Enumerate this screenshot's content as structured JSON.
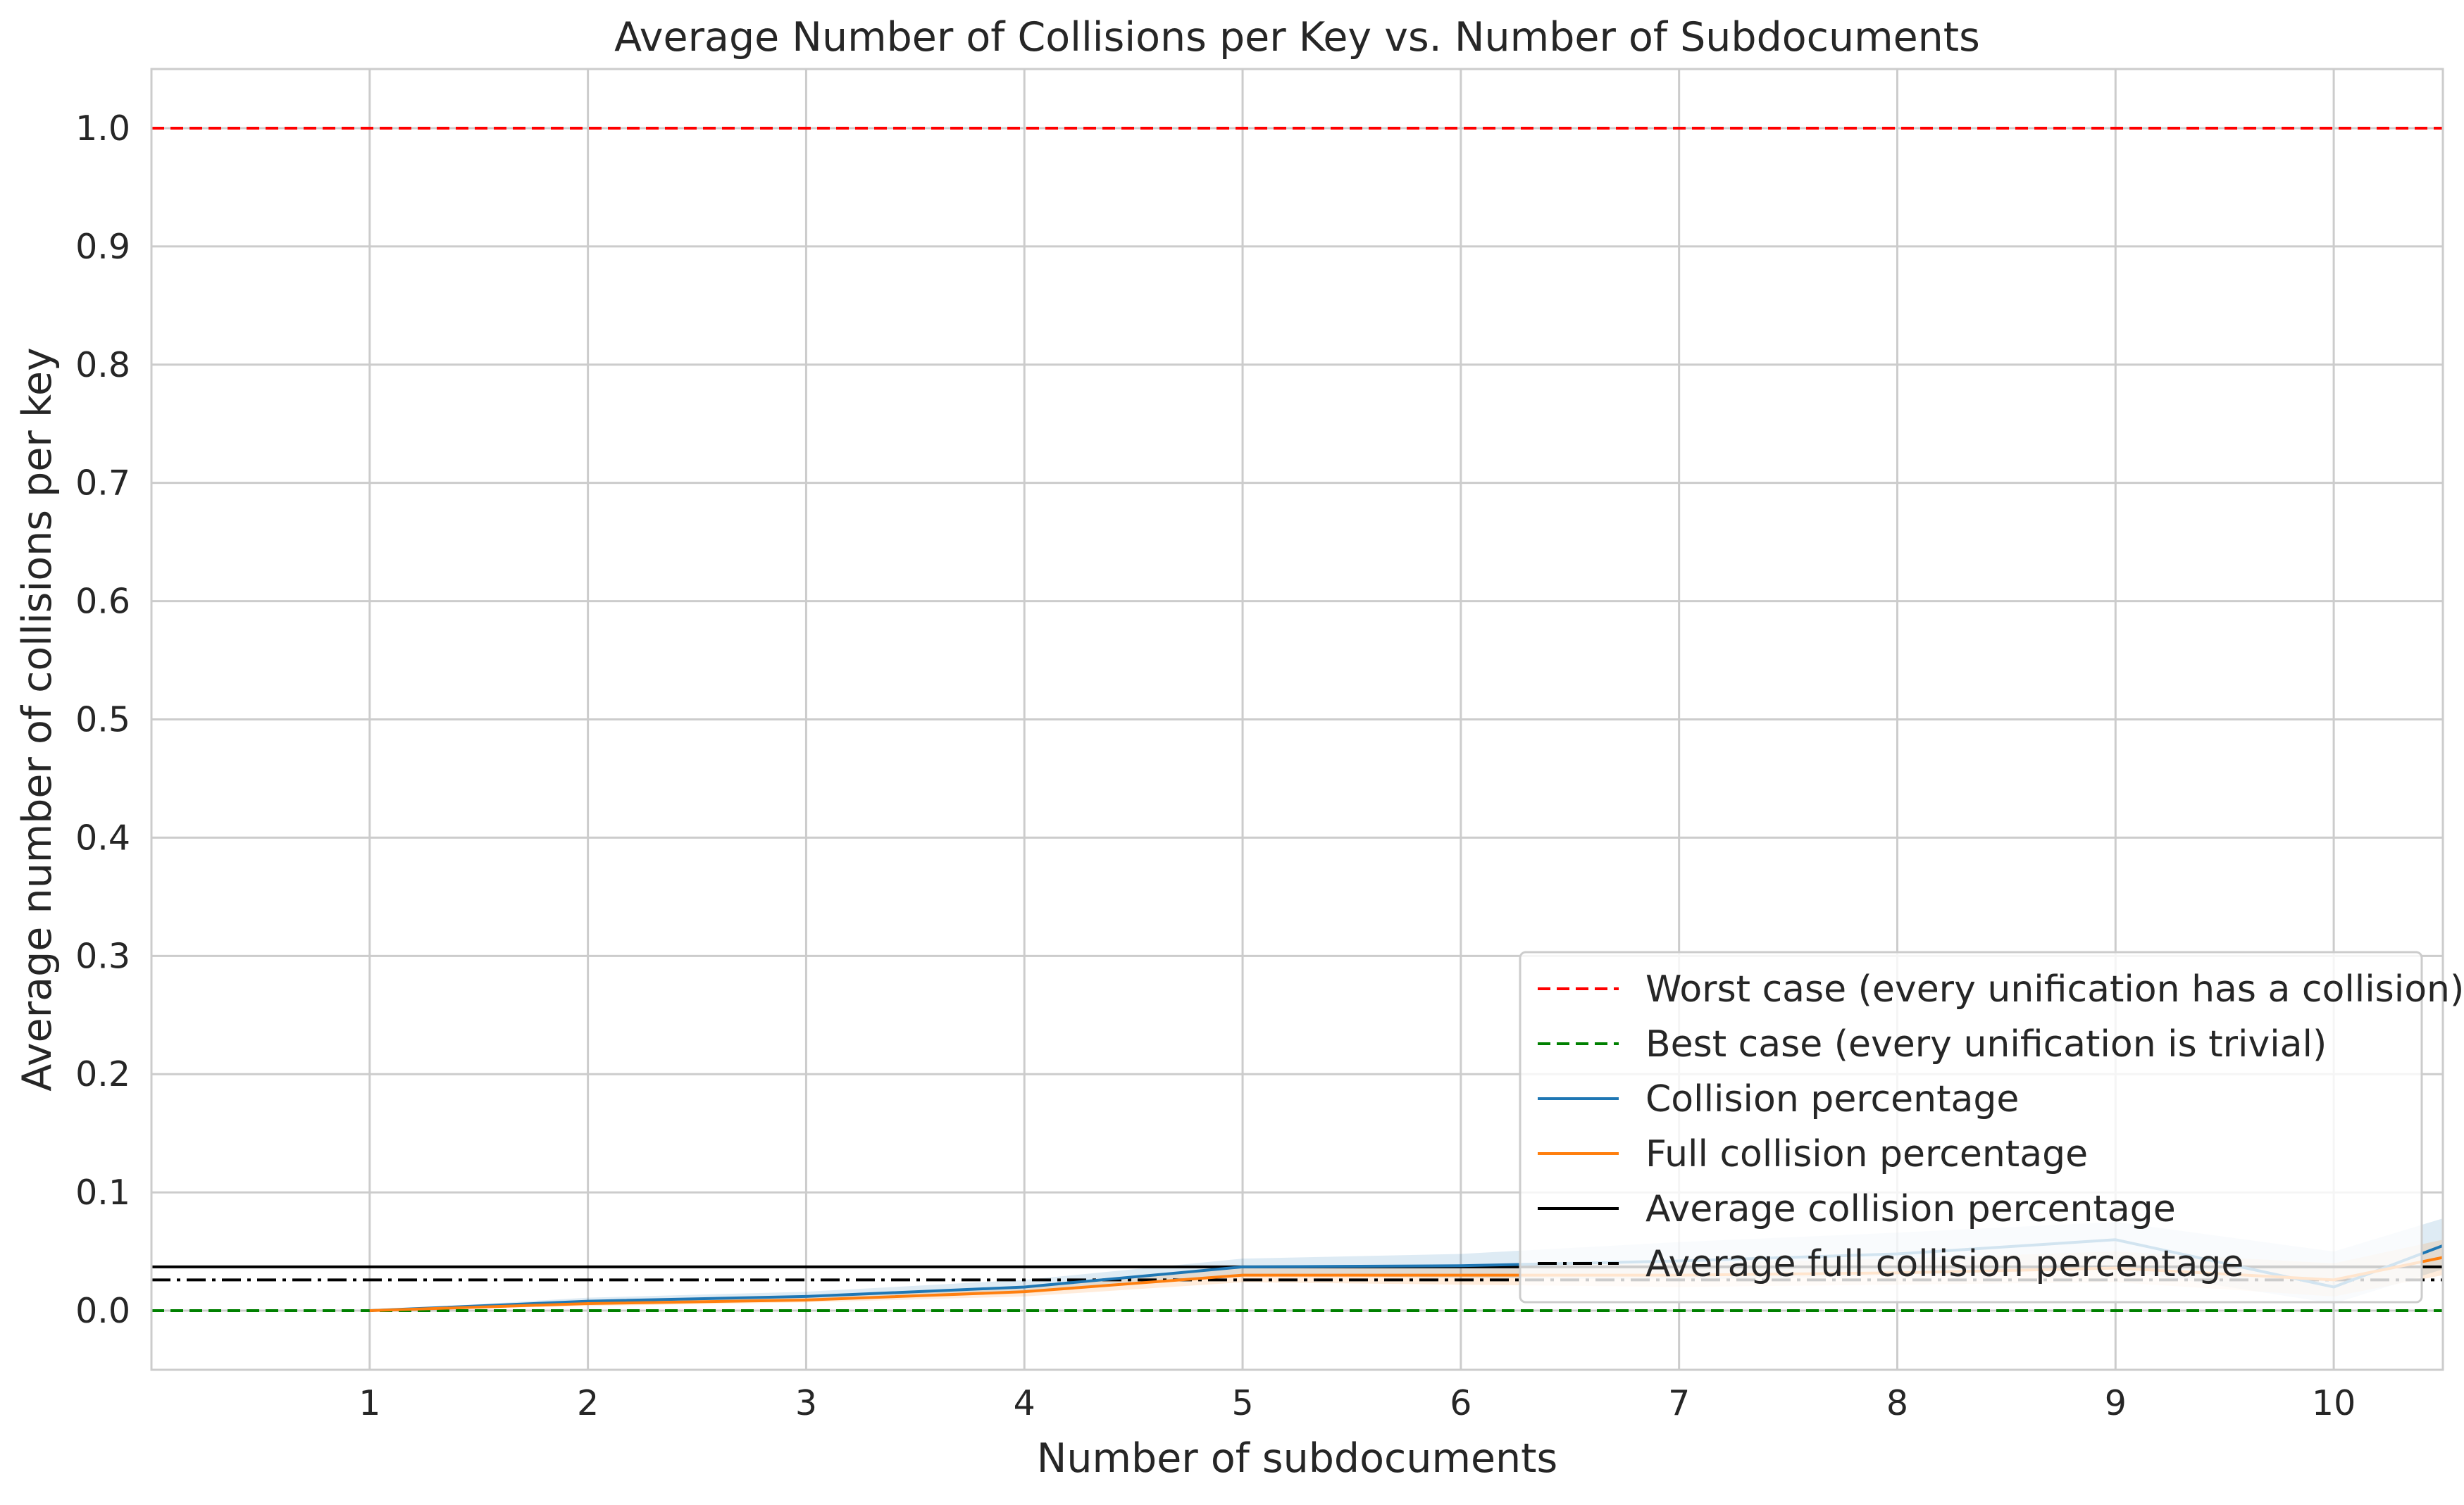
{
  "chart_data": {
    "type": "line",
    "title": "Average Number of Collisions per Key vs. Number of Subdocuments",
    "xlabel": "Number of subdocuments",
    "ylabel": "Average number of collisions per key",
    "xlim": [
      0,
      10.5
    ],
    "ylim": [
      -0.05,
      1.05
    ],
    "xticks": [
      "1",
      "2",
      "3",
      "4",
      "5",
      "6",
      "7",
      "8",
      "9",
      "10"
    ],
    "yticks": [
      "0.0",
      "0.1",
      "0.2",
      "0.3",
      "0.4",
      "0.5",
      "0.6",
      "0.7",
      "0.8",
      "0.9",
      "1.0"
    ],
    "grid": true,
    "legend_position": "lower-right",
    "x": [
      1,
      2,
      3,
      4,
      5,
      6,
      7,
      8,
      9,
      10,
      10.5
    ],
    "series": [
      {
        "name": "Collision percentage",
        "color": "#1f77b4",
        "values": [
          0.0,
          0.008,
          0.012,
          0.02,
          0.037,
          0.038,
          0.042,
          0.048,
          0.06,
          0.02,
          0.055
        ],
        "band_low": [
          0.0,
          0.006,
          0.01,
          0.016,
          0.03,
          0.028,
          0.026,
          0.03,
          0.035,
          0.006,
          0.035
        ],
        "band_high": [
          0.0,
          0.011,
          0.016,
          0.026,
          0.044,
          0.048,
          0.058,
          0.066,
          0.075,
          0.05,
          0.078
        ]
      },
      {
        "name": "Full collision percentage",
        "color": "#ff7f0e",
        "values": [
          0.0,
          0.006,
          0.009,
          0.016,
          0.03,
          0.03,
          0.03,
          0.032,
          0.036,
          0.026,
          0.045
        ],
        "band_low": [
          0.0,
          0.004,
          0.007,
          0.012,
          0.024,
          0.022,
          0.02,
          0.022,
          0.024,
          0.012,
          0.03
        ],
        "band_high": [
          0.0,
          0.009,
          0.012,
          0.021,
          0.036,
          0.038,
          0.04,
          0.044,
          0.05,
          0.04,
          0.06
        ]
      }
    ],
    "reference_lines": [
      {
        "name": "Worst case (every unification has a collision)",
        "y": 1.0,
        "color": "#ff0000",
        "style": "dashed"
      },
      {
        "name": "Best case (every unification is trivial)",
        "y": 0.0,
        "color": "#008000",
        "style": "dashed"
      },
      {
        "name": "Average collision percentage",
        "y": 0.037,
        "color": "#000000",
        "style": "solid"
      },
      {
        "name": "Average full collision percentage",
        "y": 0.026,
        "color": "#000000",
        "style": "dashdot"
      }
    ],
    "legend": [
      {
        "label": "Worst case (every unification has a collision)",
        "color": "#ff0000",
        "style": "dashed"
      },
      {
        "label": "Best case (every unification is trivial)",
        "color": "#008000",
        "style": "dashed"
      },
      {
        "label": "Collision percentage",
        "color": "#1f77b4",
        "style": "solid"
      },
      {
        "label": "Full collision percentage",
        "color": "#ff7f0e",
        "style": "solid"
      },
      {
        "label": "Average collision percentage",
        "color": "#000000",
        "style": "solid"
      },
      {
        "label": "Average full collision percentage",
        "color": "#000000",
        "style": "dashdot"
      }
    ]
  }
}
